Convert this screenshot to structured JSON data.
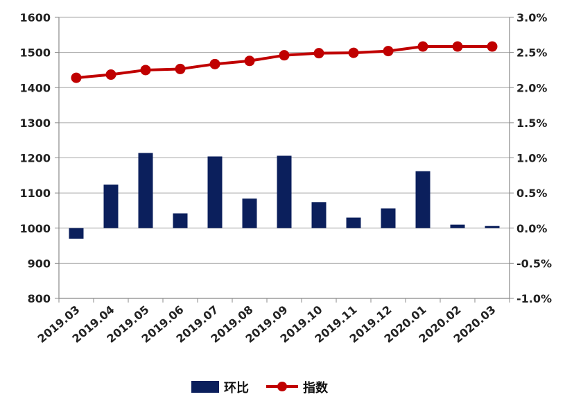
{
  "chart_data": {
    "type": "bar+line",
    "categories": [
      "2019.03",
      "2019.04",
      "2019.05",
      "2019.06",
      "2019.07",
      "2019.08",
      "2019.09",
      "2019.10",
      "2019.11",
      "2019.12",
      "2020.01",
      "2020.02",
      "2020.03"
    ],
    "series": [
      {
        "name": "环比",
        "type": "bar",
        "axis": "right",
        "color": "#0B1F5C",
        "values": [
          -0.15,
          0.62,
          1.07,
          0.21,
          1.02,
          0.42,
          1.03,
          0.37,
          0.15,
          0.28,
          0.81,
          0.05,
          0.03
        ]
      },
      {
        "name": "指数",
        "type": "line",
        "axis": "left",
        "color": "#C00000",
        "values": [
          1428,
          1437,
          1450,
          1453,
          1467,
          1476,
          1492,
          1498,
          1499,
          1504,
          1517,
          1517,
          1517
        ]
      }
    ],
    "y_left": {
      "min": 800,
      "max": 1600,
      "ticks": [
        "800",
        "900",
        "1000",
        "1100",
        "1200",
        "1300",
        "1400",
        "1500",
        "1600"
      ]
    },
    "y_right": {
      "min": -1.0,
      "max": 3.0,
      "ticks": [
        "-1.0%",
        "-0.5%",
        "0.0%",
        "0.5%",
        "1.0%",
        "1.5%",
        "2.0%",
        "2.5%",
        "3.0%"
      ]
    },
    "grid": true,
    "legend_position": "bottom"
  }
}
